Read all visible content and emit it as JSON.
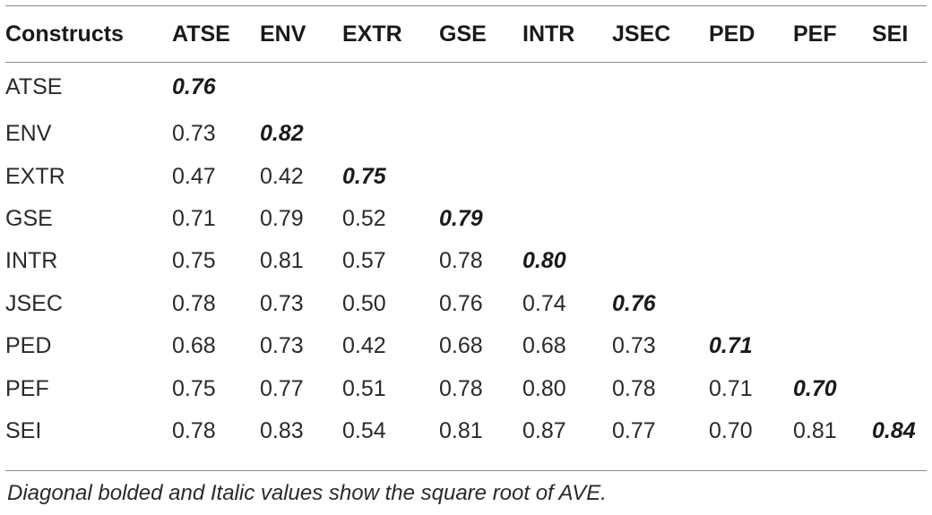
{
  "table": {
    "corner": "Constructs",
    "columns": [
      "ATSE",
      "ENV",
      "EXTR",
      "GSE",
      "INTR",
      "JSEC",
      "PED",
      "PEF",
      "SEI"
    ],
    "rows": [
      {
        "label": "ATSE",
        "values": [
          "0.76"
        ]
      },
      {
        "label": "ENV",
        "values": [
          "0.73",
          "0.82"
        ]
      },
      {
        "label": "EXTR",
        "values": [
          "0.47",
          "0.42",
          "0.75"
        ]
      },
      {
        "label": "GSE",
        "values": [
          "0.71",
          "0.79",
          "0.52",
          "0.79"
        ]
      },
      {
        "label": "INTR",
        "values": [
          "0.75",
          "0.81",
          "0.57",
          "0.78",
          "0.80"
        ]
      },
      {
        "label": "JSEC",
        "values": [
          "0.78",
          "0.73",
          "0.50",
          "0.76",
          "0.74",
          "0.76"
        ]
      },
      {
        "label": "PED",
        "values": [
          "0.68",
          "0.73",
          "0.42",
          "0.68",
          "0.68",
          "0.73",
          "0.71"
        ]
      },
      {
        "label": "PEF",
        "values": [
          "0.75",
          "0.77",
          "0.51",
          "0.78",
          "0.80",
          "0.78",
          "0.71",
          "0.70"
        ]
      },
      {
        "label": "SEI",
        "values": [
          "0.78",
          "0.83",
          "0.54",
          "0.81",
          "0.87",
          "0.77",
          "0.70",
          "0.81",
          "0.84"
        ]
      }
    ]
  },
  "footnote": "Diagonal bolded and Italic values show the square root of AVE."
}
